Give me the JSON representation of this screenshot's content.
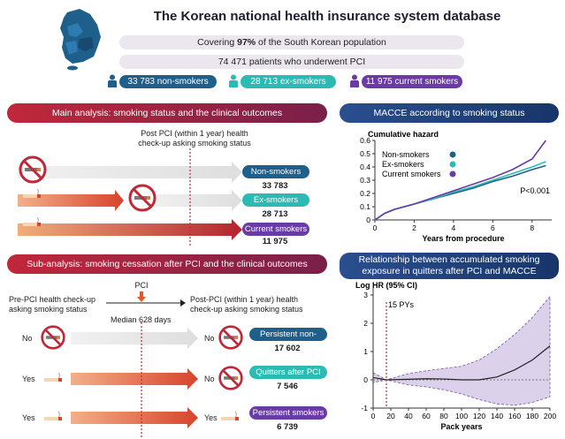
{
  "header": {
    "title": "The Korean national health insurance system database",
    "coverage_prefix": "Covering ",
    "coverage_bold": "97%",
    "coverage_suffix": " of the South Korean population",
    "patients": "74 471 patients who underwent PCI"
  },
  "groups": [
    {
      "count": "33 783",
      "label": "non-smokers",
      "color": "#1f5f8b"
    },
    {
      "count": "28 713",
      "label": "ex-smokers",
      "color": "#2bbbb3"
    },
    {
      "count": "11 975",
      "label": "current smokers",
      "color": "#6a3aa5"
    }
  ],
  "main_analysis": {
    "header": "Main analysis: smoking status and the clinical outcomes",
    "checkup_label_1": "Post PCI (within 1 year) health",
    "checkup_label_2": "check-up asking smoking status",
    "rows": [
      {
        "label": "Non-smokers",
        "count": "33 783",
        "color": "#1f5f8b"
      },
      {
        "label": "Ex-smokers",
        "count": "28 713",
        "color": "#2bbbb3"
      },
      {
        "label": "Current smokers",
        "count": "11 975",
        "color": "#6a3aa5"
      }
    ]
  },
  "sub_analysis": {
    "header": "Sub-analysis: smoking cessation after PCI and the clinical outcomes",
    "pci_label": "PCI",
    "pre_label_1": "Pre-PCI health check-up",
    "pre_label_2": "asking smoking status",
    "post_label_1": "Post-PCI (within 1 year) health",
    "post_label_2": "check-up asking smoking status",
    "median_label": "Median 628 days",
    "rows": [
      {
        "pre": "No",
        "post": "No",
        "label": "Persistent non-smokers",
        "count": "17 602",
        "color": "#1f5f8b"
      },
      {
        "pre": "Yes",
        "post": "No",
        "label": "Quitters after PCI",
        "count": "7 546",
        "color": "#2bbbb3"
      },
      {
        "pre": "Yes",
        "post": "Yes",
        "label": "Persistent smokers",
        "count": "6 739",
        "color": "#6a3aa5"
      }
    ]
  },
  "chart_data": [
    {
      "type": "line",
      "header": "MACCE according to smoking status",
      "ylabel": "Cumulative hazard",
      "xlabel": "Years from procedure",
      "xlim": [
        0,
        9
      ],
      "ylim": [
        0,
        0.6
      ],
      "xticks": [
        0,
        2,
        4,
        6,
        8
      ],
      "yticks": [
        0,
        0.1,
        0.2,
        0.3,
        0.4,
        0.5,
        0.6
      ],
      "annotation": "P<0.001",
      "legend": "top-left",
      "series": [
        {
          "name": "Non-smokers",
          "color": "#1f5f8b",
          "x": [
            0,
            0.5,
            1,
            2,
            3,
            4,
            5,
            6,
            7,
            8,
            8.7
          ],
          "y": [
            0,
            0.05,
            0.08,
            0.12,
            0.16,
            0.2,
            0.24,
            0.29,
            0.33,
            0.38,
            0.41
          ]
        },
        {
          "name": "Ex-smokers",
          "color": "#2bbbb3",
          "x": [
            0,
            0.5,
            1,
            2,
            3,
            4,
            5,
            6,
            7,
            8,
            8.7
          ],
          "y": [
            0,
            0.05,
            0.08,
            0.12,
            0.16,
            0.21,
            0.25,
            0.3,
            0.35,
            0.4,
            0.44
          ]
        },
        {
          "name": "Current smokers",
          "color": "#6a3aa5",
          "x": [
            0,
            0.5,
            1,
            2,
            3,
            4,
            5,
            6,
            7,
            8,
            8.3,
            8.7
          ],
          "y": [
            0,
            0.05,
            0.08,
            0.12,
            0.17,
            0.22,
            0.27,
            0.32,
            0.38,
            0.46,
            0.52,
            0.6
          ]
        }
      ]
    },
    {
      "type": "line",
      "header_1": "Relationship between accumulated smoking",
      "header_2": "exposure in quitters after PCI and MACCE",
      "ylabel": "Log HR (95% CI)",
      "xlabel": "Pack years",
      "xlim": [
        0,
        200
      ],
      "ylim": [
        -1,
        3
      ],
      "xticks": [
        0,
        20,
        40,
        60,
        80,
        100,
        120,
        140,
        160,
        180,
        200
      ],
      "yticks": [
        -1,
        0,
        1,
        2,
        3
      ],
      "reference_x": 15,
      "reference_label": "15 PYs",
      "series": [
        {
          "name": "estimate",
          "x": [
            0,
            15,
            40,
            60,
            80,
            100,
            120,
            140,
            160,
            180,
            200
          ],
          "y": [
            0.08,
            0,
            0.02,
            0.04,
            0.03,
            0.0,
            0.0,
            0.1,
            0.35,
            0.7,
            1.2
          ]
        },
        {
          "name": "upper",
          "x": [
            0,
            15,
            40,
            60,
            80,
            100,
            120,
            140,
            160,
            180,
            200
          ],
          "y": [
            0.25,
            0,
            0.22,
            0.32,
            0.4,
            0.48,
            0.7,
            1.1,
            1.6,
            2.2,
            2.95
          ]
        },
        {
          "name": "lower",
          "x": [
            0,
            15,
            40,
            60,
            80,
            100,
            120,
            140,
            160,
            180,
            200
          ],
          "y": [
            -0.1,
            0,
            -0.18,
            -0.25,
            -0.35,
            -0.5,
            -0.7,
            -0.85,
            -0.9,
            -0.8,
            -0.6
          ]
        }
      ]
    }
  ]
}
